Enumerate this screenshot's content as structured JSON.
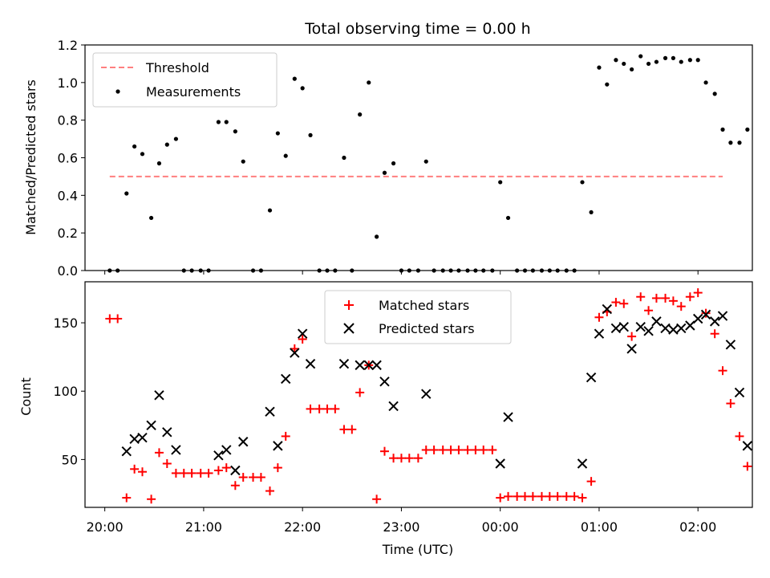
{
  "chart_data": [
    {
      "type": "scatter",
      "title": "Total observing time = 0.00 h",
      "xlabel": "",
      "ylabel": "Matched/Predicted stars",
      "x_unit": "hours since 2024-01-01 20:00 UTC",
      "xlim": [
        19.8,
        26.55
      ],
      "ylim": [
        0,
        1.2
      ],
      "yticks": [
        "0.0",
        "0.2",
        "0.4",
        "0.6",
        "0.8",
        "1.0",
        "1.2"
      ],
      "legend": {
        "position": "upper left"
      },
      "series": [
        {
          "name": "Threshold",
          "kind": "dashed-line",
          "color": "#ff7f7f",
          "x": [
            20.05,
            26.25
          ],
          "y": [
            0.5,
            0.5
          ]
        },
        {
          "name": "Measurements",
          "kind": "points",
          "color": "#000000",
          "points": [
            [
              20.05,
              0.0
            ],
            [
              20.13,
              0.0
            ],
            [
              20.22,
              0.41
            ],
            [
              20.3,
              0.66
            ],
            [
              20.38,
              0.62
            ],
            [
              20.47,
              0.28
            ],
            [
              20.55,
              0.57
            ],
            [
              20.63,
              0.67
            ],
            [
              20.72,
              0.7
            ],
            [
              20.8,
              0.0
            ],
            [
              20.88,
              0.0
            ],
            [
              20.97,
              0.0
            ],
            [
              21.05,
              0.0
            ],
            [
              21.15,
              0.79
            ],
            [
              21.23,
              0.79
            ],
            [
              21.32,
              0.74
            ],
            [
              21.4,
              0.58
            ],
            [
              21.5,
              0.0
            ],
            [
              21.58,
              0.0
            ],
            [
              21.67,
              0.32
            ],
            [
              21.75,
              0.73
            ],
            [
              21.83,
              0.61
            ],
            [
              21.92,
              1.02
            ],
            [
              22.0,
              0.97
            ],
            [
              22.08,
              0.72
            ],
            [
              22.17,
              0.0
            ],
            [
              22.25,
              0.0
            ],
            [
              22.33,
              0.0
            ],
            [
              22.42,
              0.6
            ],
            [
              22.5,
              0.0
            ],
            [
              22.58,
              0.83
            ],
            [
              22.67,
              1.0
            ],
            [
              22.75,
              0.18
            ],
            [
              22.83,
              0.52
            ],
            [
              22.92,
              0.57
            ],
            [
              23.0,
              0.0
            ],
            [
              23.08,
              0.0
            ],
            [
              23.17,
              0.0
            ],
            [
              23.25,
              0.58
            ],
            [
              23.33,
              0.0
            ],
            [
              23.42,
              0.0
            ],
            [
              23.5,
              0.0
            ],
            [
              23.58,
              0.0
            ],
            [
              23.67,
              0.0
            ],
            [
              23.75,
              0.0
            ],
            [
              23.83,
              0.0
            ],
            [
              23.92,
              0.0
            ],
            [
              24.0,
              0.47
            ],
            [
              24.08,
              0.28
            ],
            [
              24.17,
              0.0
            ],
            [
              24.25,
              0.0
            ],
            [
              24.33,
              0.0
            ],
            [
              24.42,
              0.0
            ],
            [
              24.5,
              0.0
            ],
            [
              24.58,
              0.0
            ],
            [
              24.67,
              0.0
            ],
            [
              24.75,
              0.0
            ],
            [
              24.83,
              0.47
            ],
            [
              24.92,
              0.31
            ],
            [
              25.0,
              1.08
            ],
            [
              25.08,
              0.99
            ],
            [
              25.17,
              1.12
            ],
            [
              25.25,
              1.1
            ],
            [
              25.33,
              1.07
            ],
            [
              25.42,
              1.14
            ],
            [
              25.5,
              1.1
            ],
            [
              25.58,
              1.11
            ],
            [
              25.67,
              1.13
            ],
            [
              25.75,
              1.13
            ],
            [
              25.83,
              1.11
            ],
            [
              25.92,
              1.12
            ],
            [
              26.0,
              1.12
            ],
            [
              26.08,
              1.0
            ],
            [
              26.17,
              0.94
            ],
            [
              26.25,
              0.75
            ],
            [
              26.33,
              0.68
            ],
            [
              26.42,
              0.68
            ],
            [
              26.5,
              0.75
            ]
          ]
        }
      ]
    },
    {
      "type": "scatter",
      "title": "",
      "xlabel": "Time (UTC)",
      "ylabel": "Count",
      "x_unit": "hours since 2024-01-01 20:00 UTC",
      "xlim": [
        19.8,
        26.55
      ],
      "ylim": [
        15,
        180
      ],
      "yticks": [
        "50",
        "100",
        "150"
      ],
      "xticks": [
        "20:00",
        "21:00",
        "22:00",
        "23:00",
        "00:00",
        "01:00",
        "02:00"
      ],
      "legend": {
        "position": "upper center"
      },
      "series": [
        {
          "name": "Matched stars",
          "marker": "plus",
          "color": "#ff0000",
          "points": [
            [
              20.05,
              153
            ],
            [
              20.13,
              153
            ],
            [
              20.22,
              22
            ],
            [
              20.3,
              43
            ],
            [
              20.38,
              41
            ],
            [
              20.47,
              21
            ],
            [
              20.55,
              55
            ],
            [
              20.63,
              47
            ],
            [
              20.72,
              40
            ],
            [
              20.8,
              40
            ],
            [
              20.88,
              40
            ],
            [
              20.97,
              40
            ],
            [
              21.05,
              40
            ],
            [
              21.15,
              42
            ],
            [
              21.23,
              44
            ],
            [
              21.32,
              31
            ],
            [
              21.4,
              37
            ],
            [
              21.5,
              37
            ],
            [
              21.58,
              37
            ],
            [
              21.67,
              27
            ],
            [
              21.75,
              44
            ],
            [
              21.83,
              67
            ],
            [
              21.92,
              131
            ],
            [
              22.0,
              138
            ],
            [
              22.08,
              87
            ],
            [
              22.17,
              87
            ],
            [
              22.25,
              87
            ],
            [
              22.33,
              87
            ],
            [
              22.42,
              72
            ],
            [
              22.5,
              72
            ],
            [
              22.58,
              99
            ],
            [
              22.67,
              119
            ],
            [
              22.75,
              21
            ],
            [
              22.83,
              56
            ],
            [
              22.92,
              51
            ],
            [
              23.0,
              51
            ],
            [
              23.08,
              51
            ],
            [
              23.17,
              51
            ],
            [
              23.25,
              57
            ],
            [
              23.33,
              57
            ],
            [
              23.42,
              57
            ],
            [
              23.5,
              57
            ],
            [
              23.58,
              57
            ],
            [
              23.67,
              57
            ],
            [
              23.75,
              57
            ],
            [
              23.83,
              57
            ],
            [
              23.92,
              57
            ],
            [
              24.0,
              22
            ],
            [
              24.08,
              23
            ],
            [
              24.17,
              23
            ],
            [
              24.25,
              23
            ],
            [
              24.33,
              23
            ],
            [
              24.42,
              23
            ],
            [
              24.5,
              23
            ],
            [
              24.58,
              23
            ],
            [
              24.67,
              23
            ],
            [
              24.75,
              23
            ],
            [
              24.83,
              22
            ],
            [
              24.92,
              34
            ],
            [
              25.0,
              154
            ],
            [
              25.08,
              158
            ],
            [
              25.17,
              165
            ],
            [
              25.25,
              164
            ],
            [
              25.33,
              140
            ],
            [
              25.42,
              169
            ],
            [
              25.5,
              159
            ],
            [
              25.58,
              168
            ],
            [
              25.67,
              168
            ],
            [
              25.75,
              166
            ],
            [
              25.83,
              162
            ],
            [
              25.92,
              169
            ],
            [
              26.0,
              172
            ],
            [
              26.08,
              157
            ],
            [
              26.17,
              142
            ],
            [
              26.25,
              115
            ],
            [
              26.33,
              91
            ],
            [
              26.42,
              67
            ],
            [
              26.5,
              45
            ]
          ]
        },
        {
          "name": "Predicted stars",
          "marker": "x",
          "color": "#000000",
          "points": [
            [
              20.22,
              56
            ],
            [
              20.3,
              65
            ],
            [
              20.38,
              66
            ],
            [
              20.47,
              75
            ],
            [
              20.55,
              97
            ],
            [
              20.63,
              70
            ],
            [
              20.72,
              57
            ],
            [
              21.15,
              53
            ],
            [
              21.23,
              57
            ],
            [
              21.32,
              42
            ],
            [
              21.4,
              63
            ],
            [
              21.67,
              85
            ],
            [
              21.75,
              60
            ],
            [
              21.83,
              109
            ],
            [
              21.92,
              128
            ],
            [
              22.0,
              142
            ],
            [
              22.08,
              120
            ],
            [
              22.42,
              120
            ],
            [
              22.58,
              119
            ],
            [
              22.67,
              119
            ],
            [
              22.75,
              119
            ],
            [
              22.83,
              107
            ],
            [
              22.92,
              89
            ],
            [
              23.25,
              98
            ],
            [
              24.0,
              47
            ],
            [
              24.08,
              81
            ],
            [
              24.83,
              47
            ],
            [
              24.92,
              110
            ],
            [
              25.0,
              142
            ],
            [
              25.08,
              160
            ],
            [
              25.17,
              146
            ],
            [
              25.25,
              147
            ],
            [
              25.33,
              131
            ],
            [
              25.42,
              147
            ],
            [
              25.5,
              144
            ],
            [
              25.58,
              151
            ],
            [
              25.67,
              146
            ],
            [
              25.75,
              145
            ],
            [
              25.83,
              146
            ],
            [
              25.92,
              148
            ],
            [
              26.0,
              153
            ],
            [
              26.08,
              156
            ],
            [
              26.17,
              151
            ],
            [
              26.25,
              155
            ],
            [
              26.33,
              134
            ],
            [
              26.42,
              99
            ],
            [
              26.5,
              60
            ]
          ]
        }
      ]
    }
  ]
}
